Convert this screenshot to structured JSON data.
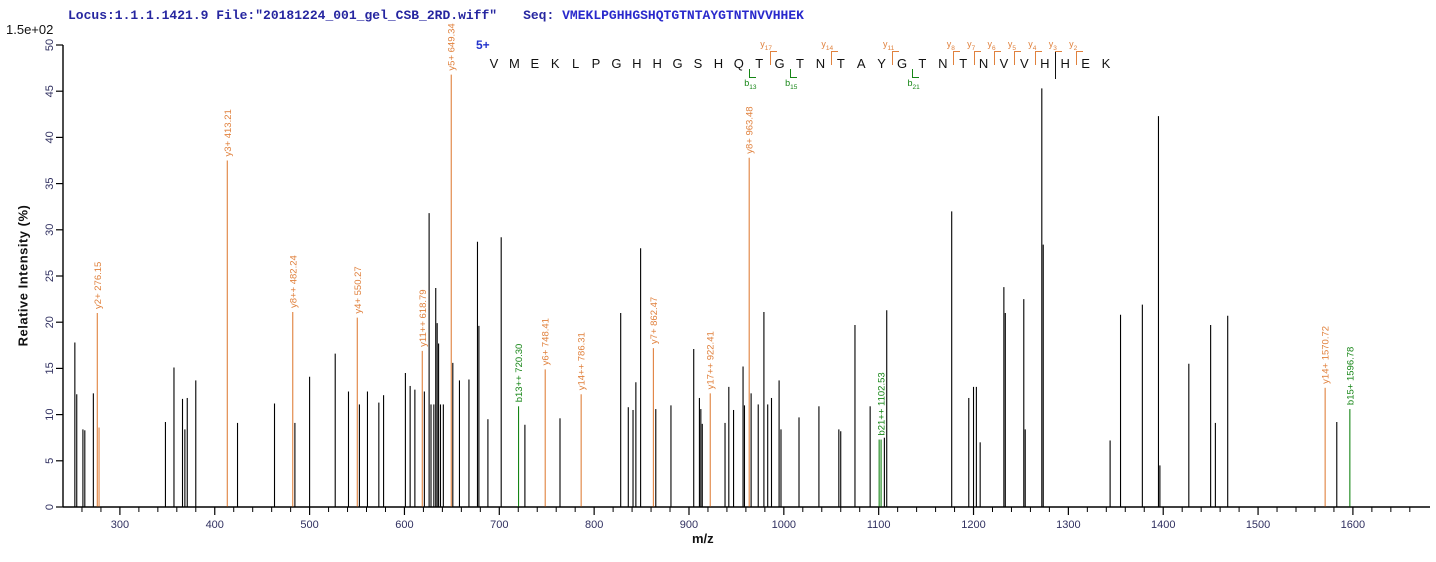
{
  "header": {
    "locus_file": "Locus:1.1.1.1421.9 File:\"20181224_001_gel_CSB_2RD.wiff\"",
    "seq_label": "Seq:",
    "sequence": "VMEKLPGHHGSHQTGTNTAYGTNTNVVHHEK"
  },
  "scale_note": "1.5e+02",
  "charge_label": "5+",
  "colors": {
    "header_text": "#2626a0",
    "sequence_text": "#2929cc",
    "charge_blue": "#2233cc",
    "y_ion_orange": "#e0813d",
    "b_ion_green": "#158515",
    "peak_black": "#000000",
    "axis": "#000000",
    "tick_label": "#303060"
  },
  "sequence_ruler": {
    "residues": [
      "V",
      "M",
      "E",
      "K",
      "L",
      "P",
      "G",
      "H",
      "H",
      "G",
      "S",
      "H",
      "Q",
      "T",
      "G",
      "T",
      "N",
      "T",
      "A",
      "Y",
      "G",
      "T",
      "N",
      "T",
      "N",
      "V",
      "V",
      "H",
      "H",
      "E",
      "K"
    ],
    "y_markers": [
      {
        "ion": "y",
        "num": "17",
        "after": 14
      },
      {
        "ion": "y",
        "num": "14",
        "after": 17
      },
      {
        "ion": "y",
        "num": "11",
        "after": 20
      },
      {
        "ion": "y",
        "num": "8",
        "after": 23
      },
      {
        "ion": "y",
        "num": "7",
        "after": 24
      },
      {
        "ion": "y",
        "num": "6",
        "after": 25
      },
      {
        "ion": "y",
        "num": "5",
        "after": 26
      },
      {
        "ion": "y",
        "num": "4",
        "after": 27
      },
      {
        "ion": "y",
        "num": "3",
        "after": 28
      },
      {
        "ion": "y",
        "num": "2",
        "after": 29
      }
    ],
    "b_markers": [
      {
        "ion": "b",
        "num": "13",
        "after": 13
      },
      {
        "ion": "b",
        "num": "15",
        "after": 15
      },
      {
        "ion": "b",
        "num": "21",
        "after": 21
      }
    ],
    "divider_after": 28
  },
  "chart_data": {
    "type": "bar",
    "title": "MS/MS fragment ion spectrum",
    "xlabel": "m/z",
    "ylabel": "Relative Intensity (%)",
    "xlim": [
      240,
      1680
    ],
    "ylim": [
      0,
      50
    ],
    "x_major_ticks": [
      300,
      400,
      500,
      600,
      700,
      800,
      900,
      1000,
      1100,
      1200,
      1300,
      1400,
      1500,
      1600
    ],
    "x_minor_step": 20,
    "y_tick_step": 5,
    "y_ticks": [
      0,
      5,
      10,
      15,
      20,
      25,
      30,
      35,
      40,
      45,
      50
    ],
    "grid": false,
    "legend": "none",
    "peaks": [
      {
        "mz": 252.5,
        "i": 17.8
      },
      {
        "mz": 254.5,
        "i": 12.2
      },
      {
        "mz": 261,
        "i": 8.4
      },
      {
        "mz": 263,
        "i": 8.3
      },
      {
        "mz": 272,
        "i": 12.3
      },
      {
        "mz": 276.15,
        "i": 21.0,
        "ion": "y",
        "label": "y2+ 276.15"
      },
      {
        "mz": 278,
        "i": 8.6,
        "ion": "y"
      },
      {
        "mz": 348,
        "i": 9.2
      },
      {
        "mz": 357,
        "i": 15.1
      },
      {
        "mz": 366,
        "i": 11.7
      },
      {
        "mz": 368.5,
        "i": 8.4
      },
      {
        "mz": 371,
        "i": 11.8
      },
      {
        "mz": 380,
        "i": 13.7
      },
      {
        "mz": 413.21,
        "i": 37.5,
        "ion": "y",
        "label": "y3+ 413.21"
      },
      {
        "mz": 424,
        "i": 9.1
      },
      {
        "mz": 463,
        "i": 11.2
      },
      {
        "mz": 482.24,
        "i": 21.1,
        "ion": "y",
        "label": "y8++ 482.24"
      },
      {
        "mz": 484.5,
        "i": 9.1
      },
      {
        "mz": 500,
        "i": 14.1
      },
      {
        "mz": 527,
        "i": 16.6
      },
      {
        "mz": 541,
        "i": 12.5
      },
      {
        "mz": 550.27,
        "i": 20.5,
        "ion": "y",
        "label": "y4+ 550.27"
      },
      {
        "mz": 552.5,
        "i": 11.1
      },
      {
        "mz": 561,
        "i": 12.5
      },
      {
        "mz": 573,
        "i": 11.3
      },
      {
        "mz": 578,
        "i": 12.1
      },
      {
        "mz": 601,
        "i": 14.5
      },
      {
        "mz": 606,
        "i": 13.1
      },
      {
        "mz": 611,
        "i": 12.7
      },
      {
        "mz": 618.79,
        "i": 16.9,
        "ion": "y",
        "label": "y11++ 618.79"
      },
      {
        "mz": 621,
        "i": 12.5
      },
      {
        "mz": 626,
        "i": 31.8
      },
      {
        "mz": 628,
        "i": 11.1
      },
      {
        "mz": 631,
        "i": 11.1
      },
      {
        "mz": 633,
        "i": 23.7
      },
      {
        "mz": 634.5,
        "i": 19.9
      },
      {
        "mz": 636,
        "i": 17.7
      },
      {
        "mz": 638,
        "i": 11.1
      },
      {
        "mz": 641,
        "i": 11.1
      },
      {
        "mz": 649.34,
        "i": 46.8,
        "ion": "y",
        "label": "y5+ 649.34"
      },
      {
        "mz": 651,
        "i": 15.6
      },
      {
        "mz": 658,
        "i": 13.7
      },
      {
        "mz": 668,
        "i": 13.8
      },
      {
        "mz": 677,
        "i": 28.7
      },
      {
        "mz": 678.5,
        "i": 19.6
      },
      {
        "mz": 688,
        "i": 9.5
      },
      {
        "mz": 702,
        "i": 29.2
      },
      {
        "mz": 720.3,
        "i": 10.9,
        "ion": "b",
        "label": "b13++ 720.30"
      },
      {
        "mz": 727,
        "i": 8.9
      },
      {
        "mz": 748.41,
        "i": 14.9,
        "ion": "y",
        "label": "y6+ 748.41"
      },
      {
        "mz": 764,
        "i": 9.6
      },
      {
        "mz": 786.31,
        "i": 12.2,
        "ion": "y",
        "label": "y14++ 786.31"
      },
      {
        "mz": 828,
        "i": 21.0
      },
      {
        "mz": 836,
        "i": 10.8
      },
      {
        "mz": 841,
        "i": 10.5
      },
      {
        "mz": 844,
        "i": 13.5
      },
      {
        "mz": 849,
        "i": 28.0
      },
      {
        "mz": 862.47,
        "i": 17.2,
        "ion": "y",
        "label": "y7+ 862.47"
      },
      {
        "mz": 865,
        "i": 10.6
      },
      {
        "mz": 881,
        "i": 11.0
      },
      {
        "mz": 905,
        "i": 17.1
      },
      {
        "mz": 911,
        "i": 11.8
      },
      {
        "mz": 912.5,
        "i": 10.6
      },
      {
        "mz": 914,
        "i": 9.0
      },
      {
        "mz": 922.41,
        "i": 12.3,
        "ion": "y",
        "label": "y17++ 922.41"
      },
      {
        "mz": 938,
        "i": 9.1
      },
      {
        "mz": 942,
        "i": 13.0
      },
      {
        "mz": 947,
        "i": 10.5
      },
      {
        "mz": 957,
        "i": 15.2
      },
      {
        "mz": 958.5,
        "i": 11.0
      },
      {
        "mz": 963.48,
        "i": 37.8,
        "ion": "y",
        "label": "y8+ 963.48"
      },
      {
        "mz": 965.5,
        "i": 12.3
      },
      {
        "mz": 973,
        "i": 11.1
      },
      {
        "mz": 979,
        "i": 21.1
      },
      {
        "mz": 983,
        "i": 11.1
      },
      {
        "mz": 987,
        "i": 11.8
      },
      {
        "mz": 995,
        "i": 13.7
      },
      {
        "mz": 997,
        "i": 8.4
      },
      {
        "mz": 1016,
        "i": 9.7
      },
      {
        "mz": 1037,
        "i": 10.9
      },
      {
        "mz": 1058,
        "i": 8.4
      },
      {
        "mz": 1060,
        "i": 8.2
      },
      {
        "mz": 1075,
        "i": 19.7
      },
      {
        "mz": 1091,
        "i": 10.9
      },
      {
        "mz": 1100.5,
        "i": 7.3,
        "ion": "b"
      },
      {
        "mz": 1102.53,
        "i": 7.3,
        "ion": "b",
        "label": "b21++ 1102.53"
      },
      {
        "mz": 1106,
        "i": 7.5
      },
      {
        "mz": 1108.5,
        "i": 21.3
      },
      {
        "mz": 1177,
        "i": 32.0
      },
      {
        "mz": 1195,
        "i": 11.8
      },
      {
        "mz": 1200,
        "i": 13.0
      },
      {
        "mz": 1203,
        "i": 13.0
      },
      {
        "mz": 1207,
        "i": 7.0
      },
      {
        "mz": 1232,
        "i": 23.8
      },
      {
        "mz": 1233.5,
        "i": 21.0
      },
      {
        "mz": 1253,
        "i": 22.5
      },
      {
        "mz": 1254.5,
        "i": 8.4
      },
      {
        "mz": 1272,
        "i": 45.3
      },
      {
        "mz": 1273.5,
        "i": 28.4
      },
      {
        "mz": 1344,
        "i": 7.2
      },
      {
        "mz": 1355,
        "i": 20.8
      },
      {
        "mz": 1378,
        "i": 21.9
      },
      {
        "mz": 1395,
        "i": 42.3
      },
      {
        "mz": 1396.5,
        "i": 4.5
      },
      {
        "mz": 1427,
        "i": 15.5
      },
      {
        "mz": 1450,
        "i": 19.7
      },
      {
        "mz": 1455,
        "i": 9.1
      },
      {
        "mz": 1468,
        "i": 20.7
      },
      {
        "mz": 1570.72,
        "i": 12.9,
        "ion": "y",
        "label": "y14+ 1570.72"
      },
      {
        "mz": 1583,
        "i": 9.2
      },
      {
        "mz": 1596.78,
        "i": 10.6,
        "ion": "b",
        "label": "b15+ 1596.78"
      }
    ]
  }
}
